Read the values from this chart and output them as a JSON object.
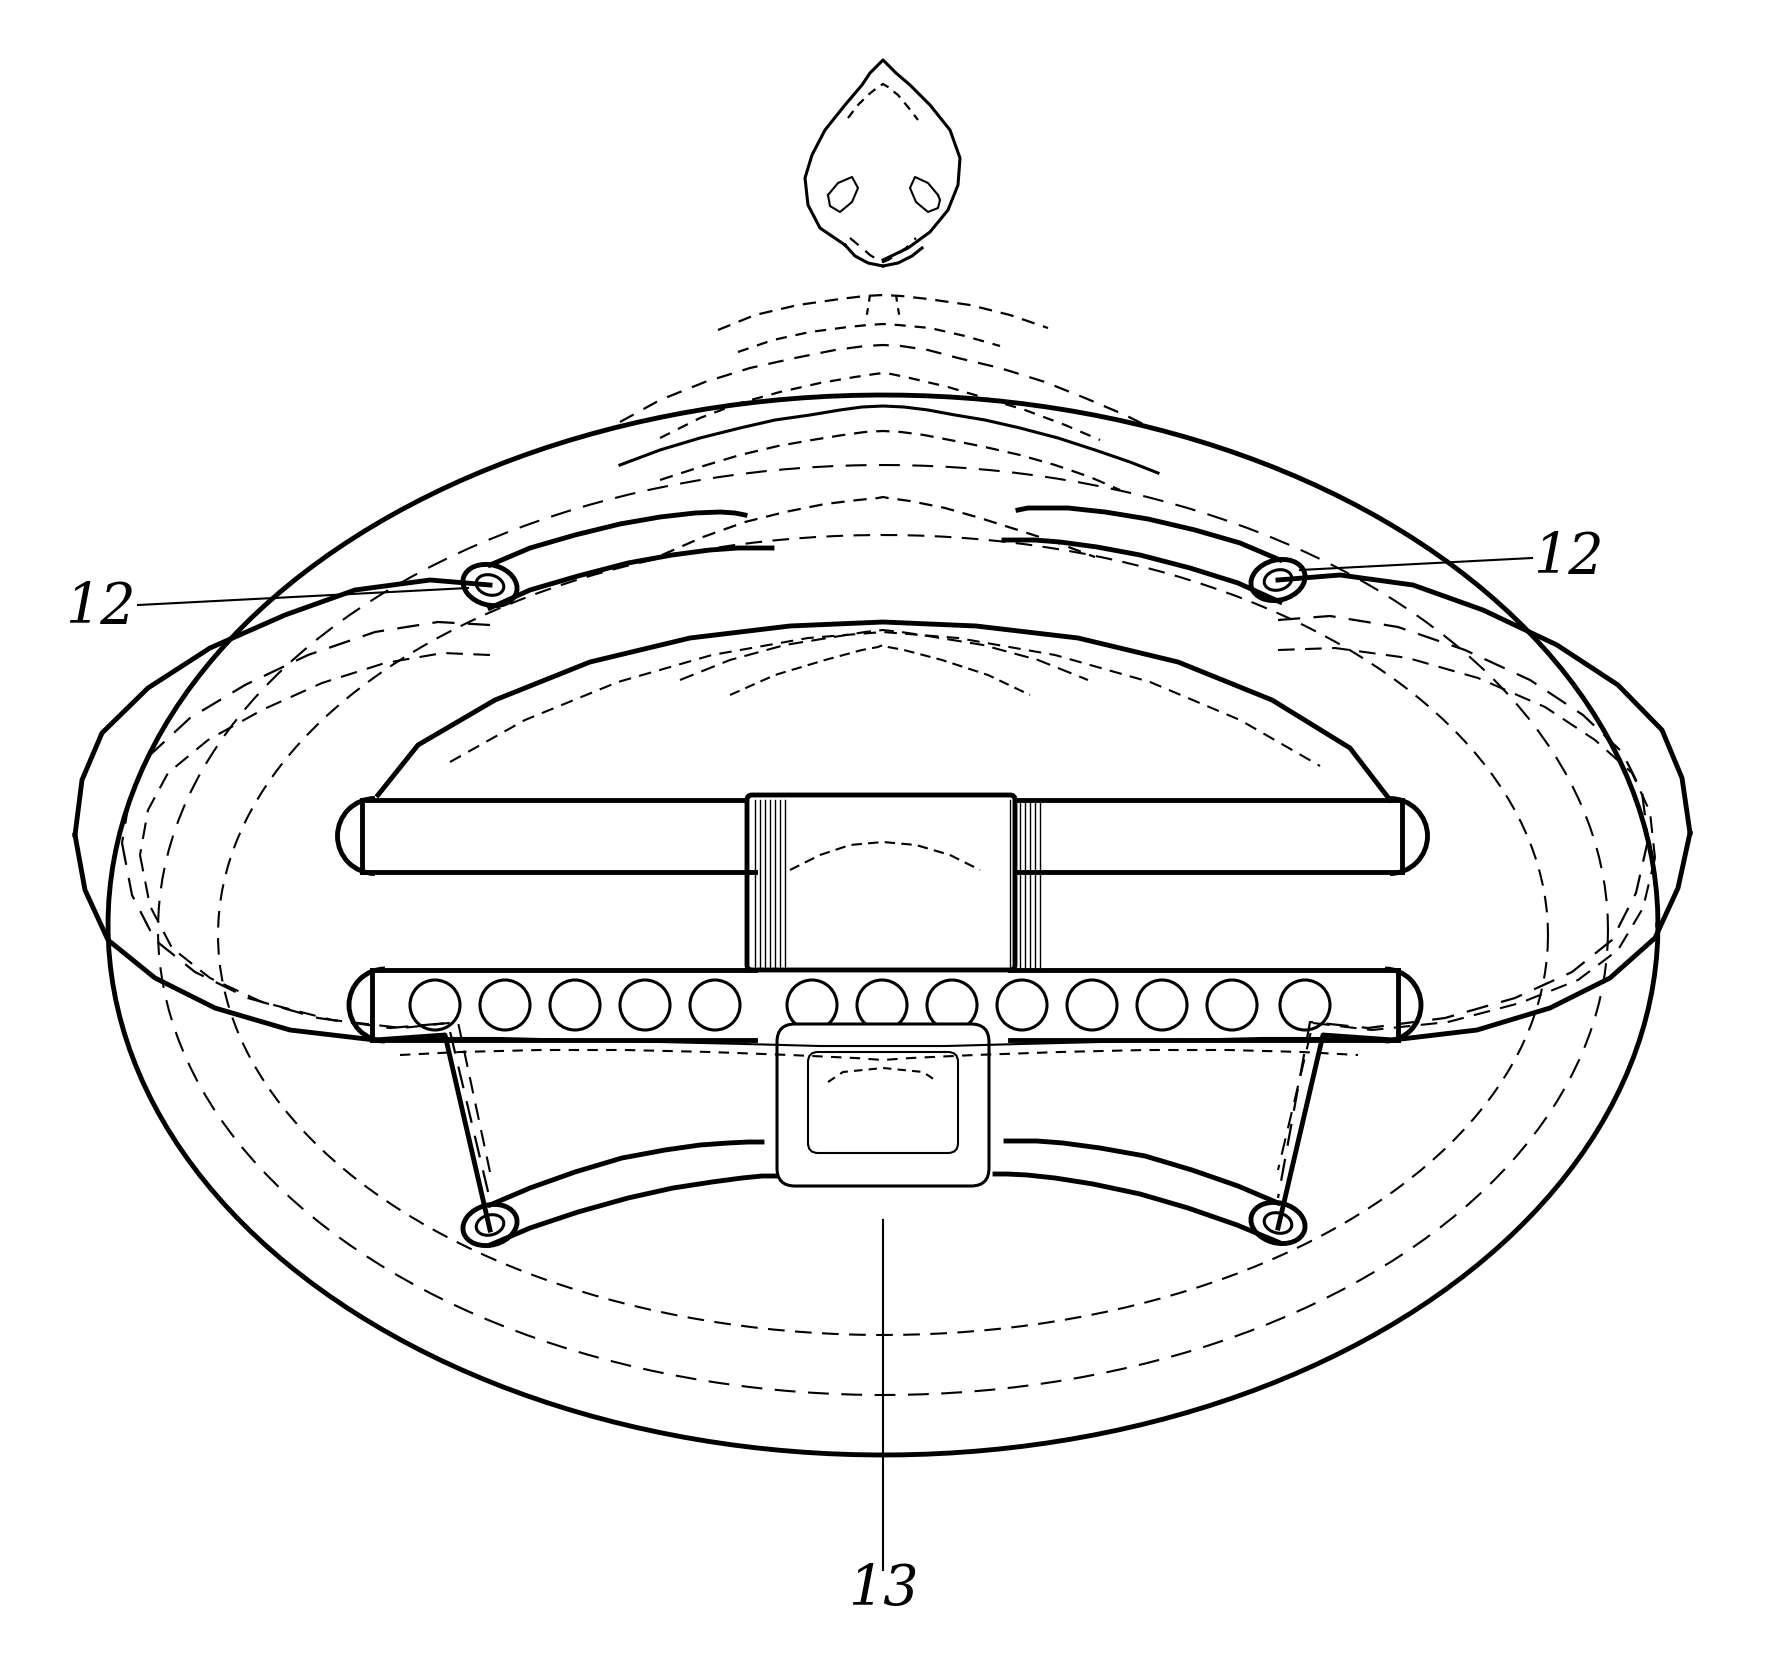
{
  "bg_color": "#ffffff",
  "line_color": "#000000",
  "label_12_left": "12",
  "label_12_right": "12",
  "label_13": "13",
  "fig_width": 17.66,
  "fig_height": 16.72,
  "dpi": 100
}
